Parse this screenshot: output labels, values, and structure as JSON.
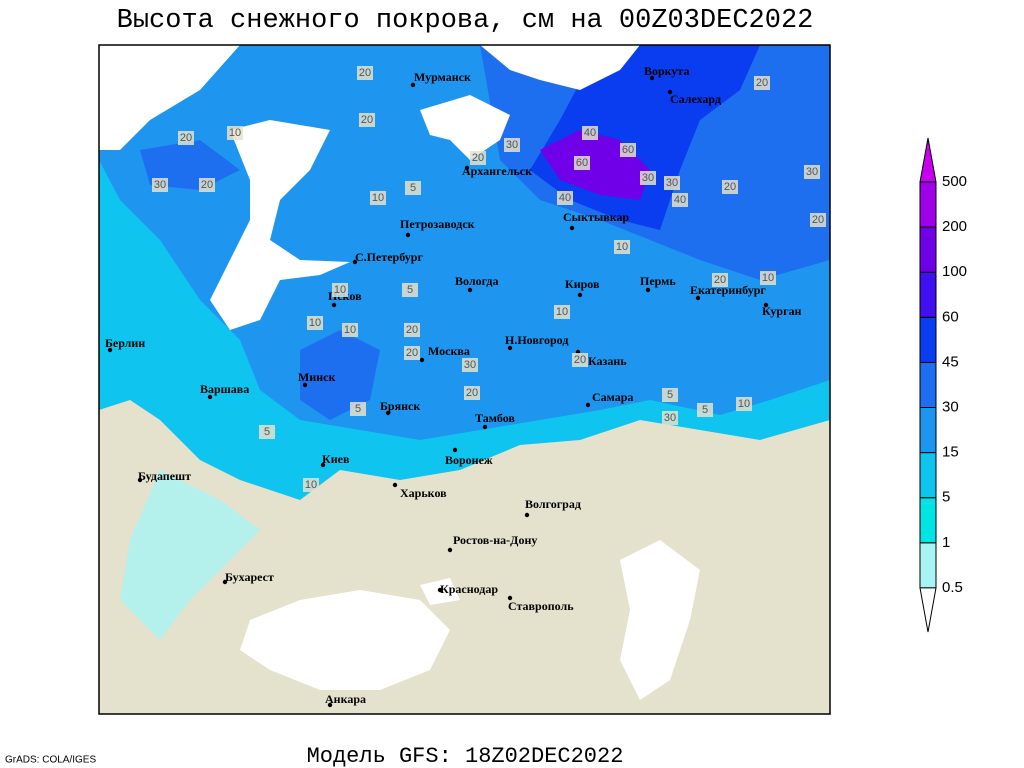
{
  "title": "Высота снежного покрова, см на 00Z03DEC2022",
  "footer": "Модель GFS: 18Z02DEC2022",
  "credit": "GrADS: COLA/IGES",
  "cities": [
    "Мурманск",
    "Воркута",
    "Салехард",
    "Архангельск",
    "Петрозаводск",
    "С.Петербург",
    "Сыктывкар",
    "Вологда",
    "Киров",
    "Пермь",
    "Екатеринбург",
    "Курган",
    "Псков",
    "Н.Новгород",
    "Москва",
    "Казань",
    "Берлин",
    "Минск",
    "Варшава",
    "Брянск",
    "Тамбов",
    "Самара",
    "Киев",
    "Воронеж",
    "Будапешт",
    "Харьков",
    "Волгоград",
    "Ростов-на-Дону",
    "Бухарест",
    "Краснодар",
    "Ставрополь",
    "Анкара"
  ],
  "contour_labels": [
    20,
    20,
    30,
    10,
    20,
    5,
    10,
    20,
    20,
    30,
    40,
    60,
    60,
    40,
    30,
    30,
    40,
    20,
    30,
    20,
    10,
    5,
    10,
    10,
    20,
    10,
    30,
    20,
    20,
    5,
    10,
    20,
    5,
    30,
    5,
    20,
    10,
    20,
    10,
    5,
    10
  ],
  "legend": {
    "levels": [
      0.5,
      1,
      5,
      15,
      30,
      45,
      60,
      100,
      200,
      500
    ],
    "colors": [
      "#a8f4f4",
      "#00e4e4",
      "#10c4f0",
      "#1e96f0",
      "#1e6ef0",
      "#0a3cf0",
      "#4010f0",
      "#7000e8",
      "#a000e8",
      "#c800f0"
    ]
  }
}
